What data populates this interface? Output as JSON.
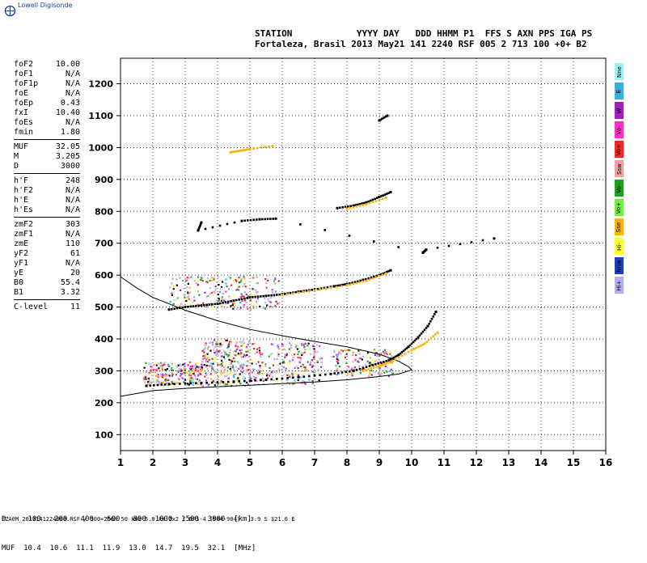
{
  "app": {
    "logo_text": "Lowell Digisonde"
  },
  "header": {
    "line1": "STATION            YYYY DAY   DDD HHMM P1  FFS S AXN PPS IGA PS",
    "line2": "Fortaleza, Brasil 2013 May21 141 2240 RSF 005 2 713 100 +0+ B2"
  },
  "params": {
    "group1": [
      {
        "k": "foF2",
        "v": "10.00"
      },
      {
        "k": "foF1",
        "v": "N/A"
      },
      {
        "k": "foF1p",
        "v": "N/A"
      },
      {
        "k": "foE",
        "v": "N/A"
      },
      {
        "k": "foEp",
        "v": "0.43"
      },
      {
        "k": "fxI",
        "v": "10.40"
      },
      {
        "k": "foEs",
        "v": "N/A"
      },
      {
        "k": "fmin",
        "v": "1.80"
      }
    ],
    "group2": [
      {
        "k": "MUF",
        "v": "32.05"
      },
      {
        "k": "M",
        "v": "3.205"
      },
      {
        "k": "D",
        "v": "3000"
      }
    ],
    "group3": [
      {
        "k": "h'F",
        "v": "248"
      },
      {
        "k": "h'F2",
        "v": "N/A"
      },
      {
        "k": "h'E",
        "v": "N/A"
      },
      {
        "k": "h'Es",
        "v": "N/A"
      }
    ],
    "group4": [
      {
        "k": "zmF2",
        "v": "303"
      },
      {
        "k": "zmF1",
        "v": "N/A"
      },
      {
        "k": "zmE",
        "v": "110"
      },
      {
        "k": "yF2",
        "v": "61"
      },
      {
        "k": "yF1",
        "v": "N/A"
      },
      {
        "k": "yE",
        "v": "20"
      },
      {
        "k": "B0",
        "v": "55.4"
      },
      {
        "k": "B1",
        "v": "3.32"
      }
    ],
    "group5": [
      {
        "k": "C-level",
        "v": "11"
      }
    ]
  },
  "legend": [
    {
      "label": "Nne",
      "color": "#9ff0f0"
    },
    {
      "label": "E",
      "color": "#3aaee0"
    },
    {
      "label": "W",
      "color": "#a020c0"
    },
    {
      "label": "Vo-",
      "color": "#ff30c0"
    },
    {
      "label": "Vo+",
      "color": "#ff2020"
    },
    {
      "label": "Ssw",
      "color": "#f0a0a0"
    },
    {
      "label": "Vo-",
      "color": "#20a020"
    },
    {
      "label": "Vo+",
      "color": "#70f040"
    },
    {
      "label": "Sse",
      "color": "#ffb000"
    },
    {
      "label": "Hi-",
      "color": "#ffff40"
    },
    {
      "label": "Nnw",
      "color": "#2040c0"
    },
    {
      "label": "Hi+",
      "color": "#b0b0f0"
    }
  ],
  "bottom": {
    "line1": "D     100   200   400   600   800  1000  1500  3000  [km]",
    "line2": "MUF  10.4  10.6  11.1  11.9  13.0  14.7  19.5  32.1  [MHz]"
  },
  "footer": "FZA0M_2013141224000.RSF / 300×256h 50 kHz 5.0 km 2x2 / DPS-4 (904-904)   3.9 S 321.6 E",
  "chart_data": {
    "type": "scatter",
    "xlim": [
      1,
      16
    ],
    "ylim": [
      50,
      1280
    ],
    "x_ticks": [
      1,
      2,
      3,
      4,
      5,
      6,
      7,
      8,
      9,
      10,
      11,
      12,
      13,
      14,
      15,
      16
    ],
    "y_ticks": [
      100,
      200,
      300,
      400,
      500,
      600,
      700,
      800,
      900,
      1000,
      1100,
      1200
    ],
    "grid": "dotted",
    "profile_curve": {
      "upper": [
        [
          1.0,
          595
        ],
        [
          1.5,
          560
        ],
        [
          2,
          530
        ],
        [
          3,
          490
        ],
        [
          4,
          457
        ],
        [
          5,
          430
        ],
        [
          6,
          410
        ],
        [
          7,
          392
        ],
        [
          8,
          375
        ],
        [
          9,
          352
        ],
        [
          9.6,
          330
        ],
        [
          9.9,
          313
        ],
        [
          10.0,
          303
        ]
      ],
      "lower": [
        [
          1.0,
          220
        ],
        [
          2,
          238
        ],
        [
          3,
          245
        ],
        [
          4,
          250
        ],
        [
          5,
          255
        ],
        [
          6,
          260
        ],
        [
          7,
          265
        ],
        [
          8,
          272
        ],
        [
          9,
          282
        ],
        [
          9.6,
          290
        ],
        [
          10.0,
          303
        ]
      ]
    },
    "traces": [
      {
        "name": "F-O",
        "color": "#000000",
        "points": [
          [
            1.8,
            253
          ],
          [
            2.5,
            258
          ],
          [
            3.5,
            262
          ],
          [
            4.5,
            266
          ],
          [
            5.5,
            272
          ],
          [
            6.5,
            280
          ],
          [
            7.5,
            290
          ],
          [
            8.2,
            300
          ],
          [
            8.8,
            318
          ],
          [
            9.3,
            333
          ],
          [
            9.6,
            350
          ],
          [
            9.9,
            375
          ],
          [
            10.2,
            405
          ],
          [
            10.5,
            440
          ],
          [
            10.75,
            485
          ]
        ]
      },
      {
        "name": "F-X",
        "color": "#ffb000",
        "points": [
          [
            8.5,
            300
          ],
          [
            9.0,
            315
          ],
          [
            9.4,
            330
          ],
          [
            10.0,
            365
          ],
          [
            10.4,
            385
          ],
          [
            10.8,
            420
          ]
        ]
      },
      {
        "name": "2F-O",
        "color": "#000000",
        "points": [
          [
            2.5,
            492
          ],
          [
            3.0,
            500
          ],
          [
            3.5,
            505
          ],
          [
            4.0,
            510
          ],
          [
            4.5,
            520
          ],
          [
            5.0,
            530
          ],
          [
            5.5,
            535
          ],
          [
            6.0,
            540
          ],
          [
            6.5,
            548
          ],
          [
            7.0,
            555
          ],
          [
            7.6,
            565
          ],
          [
            8.0,
            572
          ],
          [
            8.5,
            585
          ],
          [
            9.0,
            600
          ],
          [
            9.35,
            615
          ]
        ]
      },
      {
        "name": "2F-X",
        "color": "#ffb000",
        "points": [
          [
            6.0,
            537
          ],
          [
            7.0,
            552
          ],
          [
            8.0,
            568
          ],
          [
            8.6,
            582
          ],
          [
            9.2,
            605
          ]
        ]
      },
      {
        "name": "3F",
        "color": "#000000",
        "points": [
          [
            7.7,
            810
          ],
          [
            8.2,
            818
          ],
          [
            8.6,
            828
          ],
          [
            9.0,
            845
          ],
          [
            9.35,
            860
          ]
        ]
      },
      {
        "name": "3F-X",
        "color": "#ffb000",
        "points": [
          [
            8.0,
            808
          ],
          [
            8.6,
            822
          ],
          [
            9.2,
            842
          ]
        ]
      },
      {
        "name": "4F",
        "color": "#000000",
        "points": [
          [
            9.0,
            1085
          ],
          [
            9.25,
            1100
          ]
        ]
      },
      {
        "name": "misc-1",
        "color": "#ffb000",
        "points": [
          [
            4.4,
            985
          ],
          [
            4.7,
            990
          ],
          [
            5.0,
            995
          ],
          [
            5.7,
            1005
          ]
        ]
      },
      {
        "name": "misc-2",
        "color": "#000000",
        "points": [
          [
            3.5,
            765
          ],
          [
            3.4,
            740
          ],
          [
            4.75,
            770
          ],
          [
            5.3,
            775
          ],
          [
            5.8,
            777
          ],
          [
            10.35,
            670
          ],
          [
            10.45,
            680
          ],
          [
            12.55,
            715
          ]
        ]
      }
    ],
    "clusters": [
      {
        "x": [
          1.7,
          3.5
        ],
        "y": [
          258,
          330
        ],
        "density": 1.4
      },
      {
        "x": [
          3.5,
          5.0
        ],
        "y": [
          255,
          400
        ],
        "density": 1.0
      },
      {
        "x": [
          5.0,
          7.2
        ],
        "y": [
          260,
          390
        ],
        "density": 0.6
      },
      {
        "x": [
          7.5,
          9.4
        ],
        "y": [
          285,
          370
        ],
        "density": 0.7
      },
      {
        "x": [
          2.5,
          5.9
        ],
        "y": [
          495,
          600
        ],
        "density": 0.5
      }
    ]
  }
}
